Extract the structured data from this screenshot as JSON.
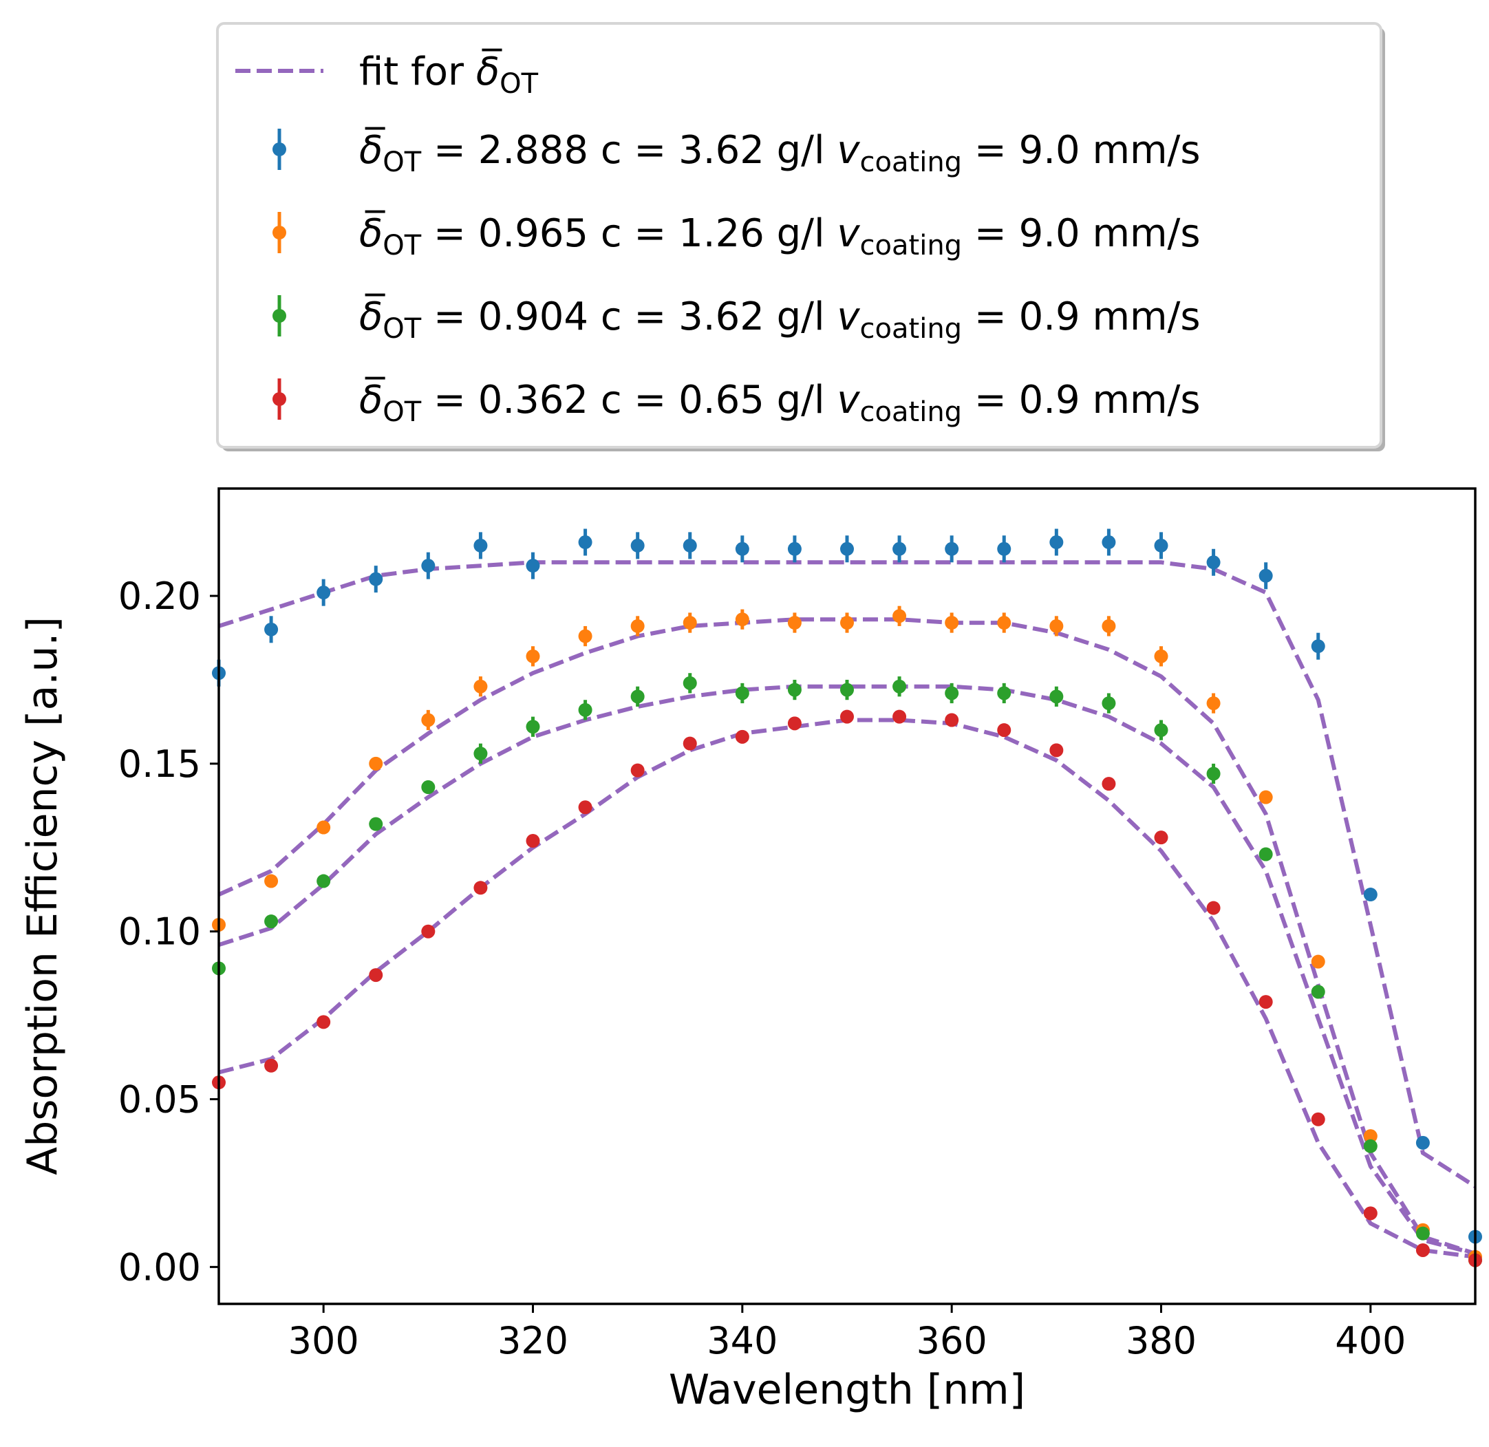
{
  "chart_data": {
    "type": "scatter",
    "xlabel": "Wavelength [nm]",
    "ylabel": "Absorption Efficiency [a.u.]",
    "xlim": [
      290,
      410
    ],
    "ylim": [
      -0.011,
      0.232
    ],
    "xticks": [
      300,
      320,
      340,
      360,
      380,
      400
    ],
    "xtick_labels": [
      "300",
      "320",
      "340",
      "360",
      "380",
      "400"
    ],
    "yticks": [
      0.0,
      0.05,
      0.1,
      0.15,
      0.2
    ],
    "ytick_labels": [
      "0.00",
      "0.05",
      "0.10",
      "0.15",
      "0.20"
    ],
    "grid": false,
    "legend_position": "above-plot",
    "fit_label_prefix": "fit for ",
    "series": [
      {
        "name": "blue",
        "color": "#1f77b4",
        "delta_value": "2.888",
        "concentration": "3.62 g/l",
        "velocity": "9.0 mm/s",
        "x": [
          290,
          295,
          300,
          305,
          310,
          315,
          320,
          325,
          330,
          335,
          340,
          345,
          350,
          355,
          360,
          365,
          370,
          375,
          380,
          385,
          390,
          395,
          400,
          405,
          410
        ],
        "y": [
          0.177,
          0.19,
          0.201,
          0.205,
          0.209,
          0.215,
          0.209,
          0.216,
          0.215,
          0.215,
          0.214,
          0.214,
          0.214,
          0.214,
          0.214,
          0.214,
          0.216,
          0.216,
          0.215,
          0.21,
          0.206,
          0.185,
          0.111,
          0.037,
          0.009
        ],
        "err": [
          0.004,
          0.004,
          0.004,
          0.004,
          0.004,
          0.004,
          0.004,
          0.004,
          0.004,
          0.004,
          0.004,
          0.004,
          0.004,
          0.004,
          0.004,
          0.004,
          0.004,
          0.004,
          0.004,
          0.004,
          0.004,
          0.004,
          0.001,
          0.001,
          0.001
        ],
        "fit_y": [
          0.191,
          0.196,
          0.201,
          0.206,
          0.208,
          0.209,
          0.21,
          0.21,
          0.21,
          0.21,
          0.21,
          0.21,
          0.21,
          0.21,
          0.21,
          0.21,
          0.21,
          0.21,
          0.21,
          0.208,
          0.201,
          0.169,
          0.102,
          0.034,
          0.024
        ]
      },
      {
        "name": "orange",
        "color": "#ff7f0e",
        "delta_value": "0.965",
        "concentration": "1.26 g/l",
        "velocity": "9.0 mm/s",
        "x": [
          290,
          295,
          300,
          305,
          310,
          315,
          320,
          325,
          330,
          335,
          340,
          345,
          350,
          355,
          360,
          365,
          370,
          375,
          380,
          385,
          390,
          395,
          400,
          405,
          410
        ],
        "y": [
          0.102,
          0.115,
          0.131,
          0.15,
          0.163,
          0.173,
          0.182,
          0.188,
          0.191,
          0.192,
          0.193,
          0.192,
          0.192,
          0.194,
          0.192,
          0.192,
          0.191,
          0.191,
          0.182,
          0.168,
          0.14,
          0.091,
          0.039,
          0.011,
          0.003
        ],
        "err": [
          0.001,
          0.002,
          0.002,
          0.002,
          0.003,
          0.003,
          0.003,
          0.003,
          0.003,
          0.003,
          0.003,
          0.003,
          0.003,
          0.003,
          0.003,
          0.003,
          0.003,
          0.003,
          0.003,
          0.003,
          0.002,
          0.002,
          0.001,
          0.001,
          0.001
        ],
        "fit_y": [
          0.111,
          0.118,
          0.132,
          0.148,
          0.159,
          0.169,
          0.177,
          0.183,
          0.188,
          0.191,
          0.192,
          0.193,
          0.193,
          0.193,
          0.192,
          0.192,
          0.189,
          0.184,
          0.176,
          0.162,
          0.135,
          0.084,
          0.034,
          0.009,
          0.004
        ]
      },
      {
        "name": "green",
        "color": "#2ca02c",
        "delta_value": "0.904",
        "concentration": "3.62 g/l",
        "velocity": "0.9 mm/s",
        "x": [
          290,
          295,
          300,
          305,
          310,
          315,
          320,
          325,
          330,
          335,
          340,
          345,
          350,
          355,
          360,
          365,
          370,
          375,
          380,
          385,
          390,
          395,
          400,
          405,
          410
        ],
        "y": [
          0.089,
          0.103,
          0.115,
          0.132,
          0.143,
          0.153,
          0.161,
          0.166,
          0.17,
          0.174,
          0.171,
          0.172,
          0.172,
          0.173,
          0.171,
          0.171,
          0.17,
          0.168,
          0.16,
          0.147,
          0.123,
          0.082,
          0.036,
          0.01,
          0.002
        ],
        "err": [
          0.001,
          0.002,
          0.002,
          0.002,
          0.002,
          0.003,
          0.003,
          0.003,
          0.003,
          0.003,
          0.003,
          0.003,
          0.003,
          0.003,
          0.003,
          0.003,
          0.003,
          0.003,
          0.003,
          0.003,
          0.002,
          0.002,
          0.001,
          0.001,
          0.001
        ],
        "fit_y": [
          0.096,
          0.101,
          0.114,
          0.129,
          0.14,
          0.15,
          0.158,
          0.163,
          0.167,
          0.17,
          0.172,
          0.173,
          0.173,
          0.173,
          0.173,
          0.172,
          0.169,
          0.164,
          0.156,
          0.143,
          0.118,
          0.074,
          0.03,
          0.008,
          0.004
        ]
      },
      {
        "name": "red",
        "color": "#d62728",
        "delta_value": "0.362",
        "concentration": "0.65 g/l",
        "velocity": "0.9 mm/s",
        "x": [
          290,
          295,
          300,
          305,
          310,
          315,
          320,
          325,
          330,
          335,
          340,
          345,
          350,
          355,
          360,
          365,
          370,
          375,
          380,
          385,
          390,
          395,
          400,
          405,
          410
        ],
        "y": [
          0.055,
          0.06,
          0.073,
          0.087,
          0.1,
          0.113,
          0.127,
          0.137,
          0.148,
          0.156,
          0.158,
          0.162,
          0.164,
          0.164,
          0.163,
          0.16,
          0.154,
          0.144,
          0.128,
          0.107,
          0.079,
          0.044,
          0.016,
          0.005,
          0.002
        ],
        "err": [
          0.001,
          0.001,
          0.001,
          0.001,
          0.001,
          0.001,
          0.001,
          0.002,
          0.002,
          0.002,
          0.002,
          0.002,
          0.002,
          0.002,
          0.002,
          0.002,
          0.002,
          0.002,
          0.002,
          0.002,
          0.001,
          0.001,
          0.001,
          0.001,
          0.001
        ],
        "fit_y": [
          0.058,
          0.062,
          0.074,
          0.088,
          0.1,
          0.113,
          0.125,
          0.135,
          0.146,
          0.154,
          0.159,
          0.161,
          0.163,
          0.163,
          0.162,
          0.158,
          0.151,
          0.139,
          0.124,
          0.103,
          0.074,
          0.037,
          0.013,
          0.005,
          0.003
        ]
      }
    ],
    "fit_color": "#9467bd"
  }
}
